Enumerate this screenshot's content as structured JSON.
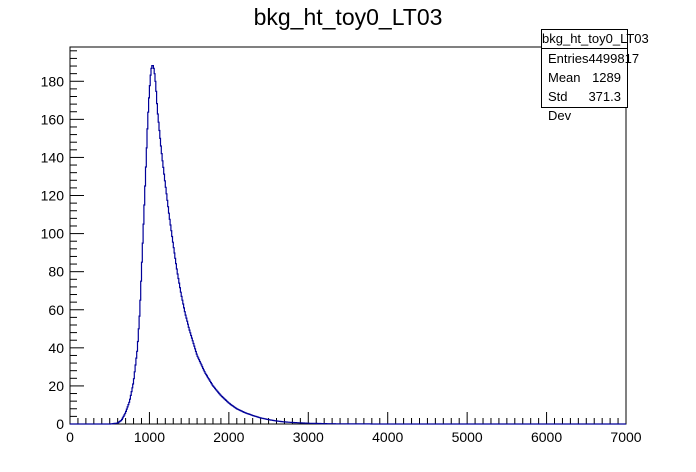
{
  "chart_data": {
    "type": "histogram",
    "title": "bkg_ht_toy0_LT03",
    "xlabel": "",
    "ylabel": "",
    "xlim": [
      0,
      7000
    ],
    "ylim": [
      0,
      198
    ],
    "x_ticks": [
      0,
      1000,
      2000,
      3000,
      4000,
      5000,
      6000,
      7000
    ],
    "y_ticks": [
      0,
      20,
      40,
      60,
      80,
      100,
      120,
      140,
      160,
      180
    ],
    "line_color": "#000099",
    "series": [
      {
        "x": [
          0,
          500,
          600,
          650,
          700,
          750,
          800,
          850,
          880,
          900,
          930,
          960,
          980,
          1000,
          1020,
          1040,
          1060,
          1080,
          1100,
          1130,
          1160,
          1200,
          1250,
          1300,
          1350,
          1400,
          1450,
          1500,
          1550,
          1600,
          1700,
          1800,
          1900,
          2000,
          2100,
          2200,
          2300,
          2400,
          2500,
          2600,
          2700,
          2800,
          2900,
          3000,
          3200,
          3400,
          3600,
          4000,
          5000,
          6000,
          7000
        ],
        "values": [
          0,
          0,
          0.5,
          2,
          6,
          12,
          22,
          40,
          60,
          80,
          110,
          140,
          160,
          175,
          186,
          189,
          186,
          178,
          165,
          152,
          140,
          126,
          109,
          94,
          80,
          68,
          58,
          50,
          43,
          36,
          27,
          20,
          15,
          11,
          8,
          6,
          4.5,
          3.2,
          2.3,
          1.6,
          1.1,
          0.8,
          0.6,
          0.4,
          0.2,
          0.1,
          0.05,
          0,
          0,
          0,
          0
        ]
      }
    ],
    "stats": {
      "name": "bkg_ht_toy0_LT03",
      "entries_label": "Entries",
      "entries": "4499817",
      "mean_label": "Mean",
      "mean": "1289",
      "stddev_label": "Std Dev",
      "stddev": "371.3"
    },
    "grid": false,
    "legend_position": "top-right"
  }
}
